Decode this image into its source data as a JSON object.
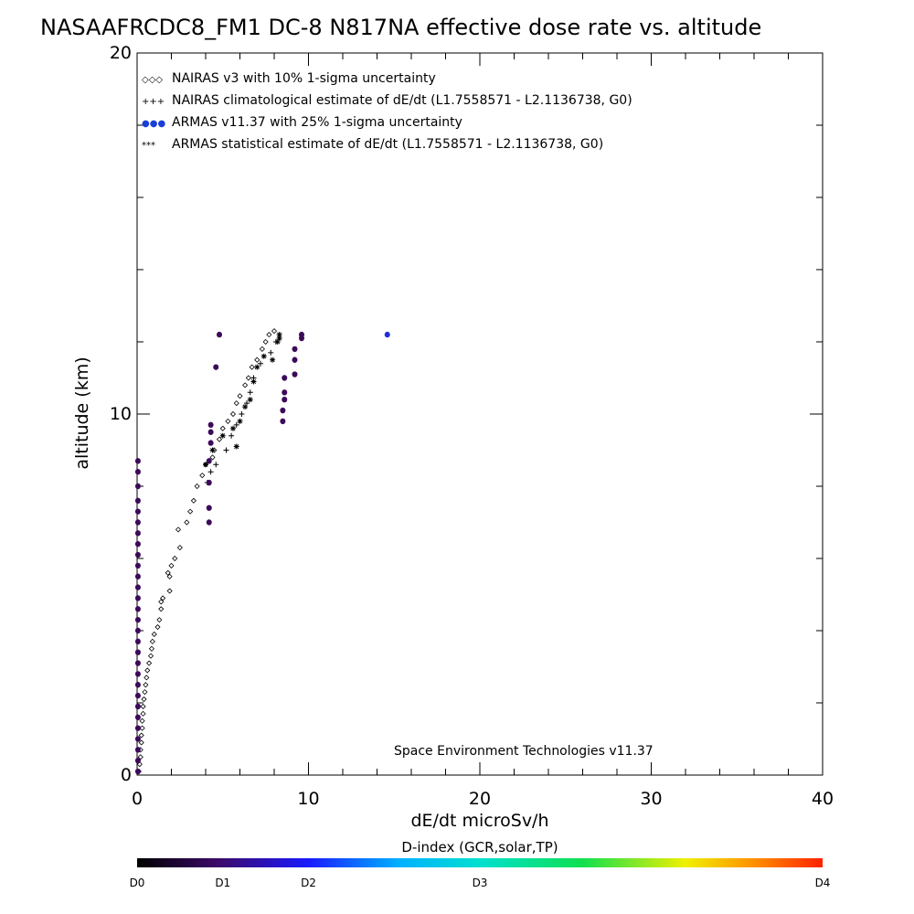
{
  "chart_data": {
    "type": "scatter",
    "title": "NASAAFRCDC8_FM1 DC-8   N817NA effective dose rate vs. altitude",
    "xlabel": "dE/dt microSv/h",
    "ylabel": "altitude (km)",
    "xlim": [
      0,
      40
    ],
    "ylim": [
      0,
      20
    ],
    "x_ticks": [
      "0",
      "10",
      "20",
      "30",
      "40"
    ],
    "y_ticks": [
      "0",
      "10",
      "20"
    ],
    "legend": [
      {
        "symbol": "◇◇◇",
        "label": "NAIRAS v3 with 10% 1-sigma uncertainty",
        "color": "#000000"
      },
      {
        "symbol": "+++",
        "label": "NAIRAS climatological estimate of dE/dt (L1.7558571 - L2.1136738, G0)",
        "color": "#000000"
      },
      {
        "symbol": "●●●",
        "label": "ARMAS v11.37 with 25% 1-sigma uncertainty",
        "color": "#1a3fd6"
      },
      {
        "symbol": "***",
        "label": "ARMAS statistical estimate of dE/dt (L1.7558571 - L2.1136738, G0)",
        "color": "#000000"
      }
    ],
    "credit": "Space Environment Technologies v11.37",
    "colorbar": {
      "title": "D-index (GCR,solar,TP)",
      "labels": [
        {
          "text": "D0",
          "pos": 0.0
        },
        {
          "text": "D1",
          "pos": 0.125
        },
        {
          "text": "D2",
          "pos": 0.25
        },
        {
          "text": "D3",
          "pos": 0.5
        },
        {
          "text": "D4",
          "pos": 1.0
        }
      ]
    },
    "series": [
      {
        "marker": "diamond",
        "color": "#000000",
        "points": [
          [
            0.1,
            0.1
          ],
          [
            0.15,
            0.3
          ],
          [
            0.2,
            0.5
          ],
          [
            0.2,
            0.7
          ],
          [
            0.25,
            0.9
          ],
          [
            0.25,
            1.1
          ],
          [
            0.3,
            1.3
          ],
          [
            0.3,
            1.5
          ],
          [
            0.35,
            1.7
          ],
          [
            0.35,
            1.9
          ],
          [
            0.4,
            2.1
          ],
          [
            0.45,
            2.3
          ],
          [
            0.5,
            2.5
          ],
          [
            0.55,
            2.7
          ],
          [
            0.6,
            2.9
          ],
          [
            0.7,
            3.1
          ],
          [
            0.8,
            3.3
          ],
          [
            0.85,
            3.5
          ],
          [
            0.9,
            3.7
          ],
          [
            1.0,
            3.9
          ],
          [
            1.2,
            4.1
          ],
          [
            1.3,
            4.3
          ],
          [
            1.4,
            4.6
          ],
          [
            1.4,
            4.8
          ],
          [
            1.5,
            4.9
          ],
          [
            1.9,
            5.1
          ],
          [
            1.9,
            5.5
          ],
          [
            1.8,
            5.6
          ],
          [
            2.0,
            5.8
          ],
          [
            2.2,
            6.0
          ],
          [
            2.5,
            6.3
          ],
          [
            2.4,
            6.8
          ],
          [
            2.9,
            7.0
          ],
          [
            3.1,
            7.3
          ],
          [
            3.3,
            7.6
          ],
          [
            3.5,
            8.0
          ],
          [
            3.8,
            8.3
          ],
          [
            4.0,
            8.6
          ],
          [
            4.4,
            8.8
          ],
          [
            4.5,
            9.0
          ],
          [
            4.8,
            9.3
          ],
          [
            5.0,
            9.6
          ],
          [
            5.3,
            9.8
          ],
          [
            5.6,
            10.0
          ],
          [
            5.8,
            10.3
          ],
          [
            6.0,
            10.5
          ],
          [
            6.3,
            10.8
          ],
          [
            6.5,
            11.0
          ],
          [
            6.7,
            11.3
          ],
          [
            7.0,
            11.5
          ],
          [
            7.3,
            11.8
          ],
          [
            7.5,
            12.0
          ],
          [
            7.7,
            12.2
          ],
          [
            8.0,
            12.3
          ]
        ]
      },
      {
        "marker": "plus",
        "color": "#000000",
        "points": [
          [
            4.1,
            8.1
          ],
          [
            4.3,
            8.4
          ],
          [
            4.6,
            8.6
          ],
          [
            5.2,
            9.0
          ],
          [
            5.5,
            9.4
          ],
          [
            5.8,
            9.7
          ],
          [
            6.1,
            10.0
          ],
          [
            6.4,
            10.3
          ],
          [
            6.6,
            10.6
          ],
          [
            6.8,
            11.0
          ],
          [
            7.2,
            11.4
          ],
          [
            7.8,
            11.7
          ],
          [
            8.1,
            12.0
          ],
          [
            8.3,
            12.1
          ]
        ]
      },
      {
        "marker": "dot",
        "color": "#3c0a5a",
        "points": [
          [
            0.05,
            8.7
          ],
          [
            0.05,
            8.4
          ],
          [
            0.05,
            8.0
          ],
          [
            0.05,
            7.6
          ],
          [
            0.05,
            7.3
          ],
          [
            0.05,
            7.0
          ],
          [
            0.05,
            6.7
          ],
          [
            0.05,
            6.4
          ],
          [
            0.05,
            6.1
          ],
          [
            0.05,
            5.8
          ],
          [
            0.05,
            5.5
          ],
          [
            0.05,
            5.2
          ],
          [
            0.05,
            4.9
          ],
          [
            0.05,
            4.6
          ],
          [
            0.05,
            4.3
          ],
          [
            0.05,
            4.0
          ],
          [
            0.05,
            3.7
          ],
          [
            0.05,
            3.4
          ],
          [
            0.05,
            3.1
          ],
          [
            0.05,
            2.8
          ],
          [
            0.05,
            2.5
          ],
          [
            0.05,
            2.2
          ],
          [
            0.05,
            1.9
          ],
          [
            0.05,
            1.6
          ],
          [
            0.05,
            1.3
          ],
          [
            0.05,
            1.0
          ],
          [
            0.05,
            0.7
          ],
          [
            0.05,
            0.4
          ],
          [
            0.05,
            0.1
          ],
          [
            4.2,
            7.0
          ],
          [
            4.2,
            7.4
          ],
          [
            4.2,
            8.1
          ],
          [
            4.2,
            8.7
          ],
          [
            4.3,
            9.2
          ],
          [
            4.3,
            9.5
          ],
          [
            4.3,
            9.7
          ],
          [
            4.6,
            11.3
          ],
          [
            4.8,
            12.2
          ],
          [
            8.5,
            9.8
          ],
          [
            8.5,
            10.1
          ],
          [
            8.6,
            10.4
          ],
          [
            8.6,
            10.6
          ],
          [
            8.6,
            11.0
          ],
          [
            9.2,
            11.1
          ],
          [
            9.2,
            11.5
          ],
          [
            9.2,
            11.8
          ],
          [
            9.6,
            12.1
          ],
          [
            9.6,
            12.2
          ]
        ]
      },
      {
        "marker": "dot",
        "color": "#1f2fd8",
        "points": [
          [
            14.6,
            12.2
          ]
        ]
      },
      {
        "marker": "asterisk",
        "color": "#000000",
        "points": [
          [
            4.0,
            8.6
          ],
          [
            4.4,
            9.0
          ],
          [
            5.0,
            9.4
          ],
          [
            5.6,
            9.6
          ],
          [
            5.8,
            9.1
          ],
          [
            6.0,
            9.8
          ],
          [
            6.3,
            10.2
          ],
          [
            6.6,
            10.4
          ],
          [
            6.8,
            10.9
          ],
          [
            7.0,
            11.3
          ],
          [
            7.4,
            11.6
          ],
          [
            7.9,
            11.5
          ],
          [
            8.2,
            12.0
          ],
          [
            8.3,
            12.2
          ],
          [
            8.3,
            12.1
          ]
        ]
      }
    ]
  }
}
